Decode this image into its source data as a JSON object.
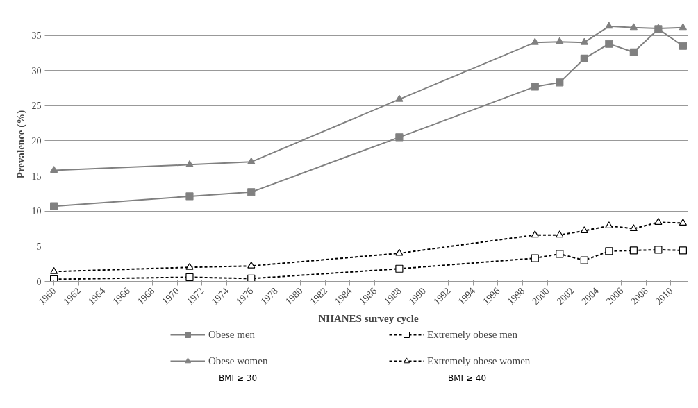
{
  "chart_data": {
    "type": "line",
    "xlabel": "NHANES survey cycle",
    "ylabel": "Prevalence (%)",
    "x": [
      1960,
      1971,
      1976,
      1988,
      1999,
      2001,
      2003,
      2005,
      2007,
      2009,
      2011
    ],
    "series": [
      {
        "name": "Obese men",
        "color": "#808080",
        "marker": "square",
        "line_style": "solid",
        "values": [
          10.7,
          12.1,
          12.7,
          20.5,
          27.7,
          28.3,
          31.7,
          33.8,
          32.6,
          35.9,
          33.5
        ]
      },
      {
        "name": "Extremely obese men",
        "color": "#000000",
        "marker": "square",
        "line_style": "dashed",
        "values": [
          0.3,
          0.6,
          0.4,
          1.8,
          3.3,
          3.9,
          3.0,
          4.3,
          4.4,
          4.5,
          4.4
        ]
      },
      {
        "name": "Obese women",
        "color": "#808080",
        "marker": "triangle",
        "line_style": "solid",
        "values": [
          15.8,
          16.6,
          17.0,
          25.9,
          34.0,
          34.1,
          34.0,
          36.3,
          36.1,
          36.0,
          36.1
        ]
      },
      {
        "name": "Extremely obese women",
        "color": "#000000",
        "marker": "triangle",
        "line_style": "dashed",
        "values": [
          1.4,
          2.0,
          2.2,
          4.0,
          6.6,
          6.6,
          7.2,
          7.9,
          7.5,
          8.4,
          8.3
        ]
      }
    ],
    "xlim": [
      1959.6,
      2011.4
    ],
    "xticks": [
      1960,
      1962,
      1964,
      1966,
      1968,
      1970,
      1972,
      1974,
      1976,
      1978,
      1980,
      1982,
      1984,
      1986,
      1988,
      1990,
      1992,
      1994,
      1996,
      1998,
      2000,
      2002,
      2004,
      2006,
      2008,
      2010
    ],
    "ylim": [
      0,
      39
    ],
    "yticks": [
      0,
      5,
      10,
      15,
      20,
      25,
      30,
      35
    ],
    "grid": "y",
    "legend": "bottom",
    "annotations": [
      "BMI ≥ 30",
      "BMI ≥ 40"
    ]
  }
}
